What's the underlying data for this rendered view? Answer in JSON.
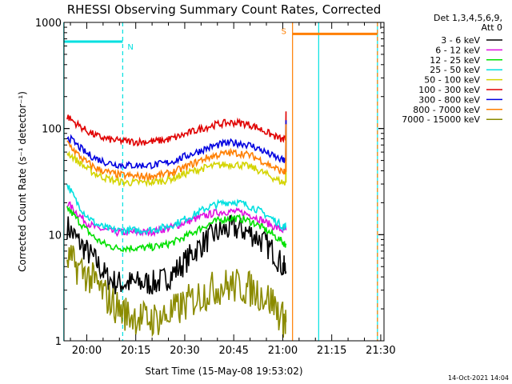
{
  "chart_data": {
    "type": "line",
    "title": "RHESSI Observing Summary Count Rates, Corrected",
    "xlabel": "Start Time (15-May-08 19:53:02)",
    "ylabel": "Corrected Count Rate (s⁻¹ detector⁻¹)",
    "yscale": "log",
    "ylim": [
      1,
      1000
    ],
    "xlim": [
      "19:53:02",
      "21:31:00"
    ],
    "x_ticks": [
      "20:00",
      "20:15",
      "20:30",
      "20:45",
      "21:00",
      "21:15",
      "21:30"
    ],
    "y_ticks": [
      "1",
      "10",
      "100",
      "1000"
    ],
    "detector_label": "Det 1,3,4,5,6,9,",
    "attenuator_label": "Att 0",
    "timestamp": "14-Oct-2021 14:04",
    "x": [
      "19:54",
      "19:57",
      "20:00",
      "20:03",
      "20:06",
      "20:09",
      "20:12",
      "20:15",
      "20:18",
      "20:21",
      "20:24",
      "20:27",
      "20:30",
      "20:33",
      "20:36",
      "20:39",
      "20:42",
      "20:45",
      "20:48",
      "20:51",
      "20:54",
      "20:57",
      "21:00",
      "21:01"
    ],
    "series": [
      {
        "name": "3 - 6 keV",
        "color": "#000000",
        "values": [
          12,
          9,
          7,
          5.5,
          4,
          3.5,
          3.5,
          3.5,
          3.5,
          3.5,
          3.8,
          4.5,
          5.5,
          7,
          8.5,
          10,
          11,
          11.5,
          11,
          10,
          8.5,
          7,
          5,
          4.5
        ]
      },
      {
        "name": "6 - 12 keV",
        "color": "#e010e0",
        "values": [
          20,
          16,
          13,
          11.5,
          11,
          10.5,
          10.5,
          10.5,
          10.5,
          10.8,
          11.3,
          12,
          13,
          14,
          15,
          16,
          16.5,
          16.5,
          16,
          15,
          13.5,
          12,
          11,
          11
        ]
      },
      {
        "name": "12 - 25 keV",
        "color": "#00e000",
        "values": [
          18,
          14,
          11,
          9,
          8,
          7.5,
          7.5,
          7.5,
          7.5,
          7.7,
          8,
          8.6,
          9.5,
          10.7,
          12,
          13.2,
          14,
          14.3,
          14,
          13,
          11.5,
          10,
          8.5,
          8
        ]
      },
      {
        "name": "25 - 50 keV",
        "color": "#00e0e0",
        "values": [
          30,
          20,
          15,
          12.5,
          11.5,
          11,
          11,
          11,
          11,
          11.2,
          11.8,
          12.6,
          14,
          15.5,
          17.5,
          19,
          20,
          20.5,
          19.5,
          18,
          16,
          14,
          12,
          12
        ]
      },
      {
        "name": "50 - 100 keV",
        "color": "#d4d400",
        "values": [
          60,
          50,
          42,
          37,
          34,
          32,
          31,
          31,
          31,
          31.5,
          32.5,
          34.5,
          37.5,
          40,
          42.5,
          44.5,
          45.5,
          46,
          45,
          42.5,
          38.5,
          34.5,
          31,
          31
        ]
      },
      {
        "name": "100 - 300 keV",
        "color": "#e00000",
        "values": [
          130,
          110,
          95,
          85,
          80,
          77,
          76,
          75,
          75,
          76,
          78,
          82,
          88,
          95,
          102,
          108,
          112,
          114,
          112,
          106,
          96,
          86,
          78,
          80
        ]
      },
      {
        "name": "300 - 800 keV",
        "color": "#0000e0",
        "values": [
          85,
          70,
          58,
          52,
          48,
          46,
          45,
          45,
          45,
          45.5,
          47,
          50,
          54.5,
          59,
          64,
          68.5,
          72,
          73.5,
          72,
          68,
          61.5,
          55,
          50,
          50
        ]
      },
      {
        "name": "800 - 7000 keV",
        "color": "#ff7f00",
        "values": [
          75,
          58,
          48,
          42,
          39,
          37,
          36,
          35.5,
          35.5,
          36,
          37,
          39.5,
          43,
          47.5,
          52,
          55.5,
          58,
          59,
          58,
          54.5,
          49,
          43.5,
          39,
          39
        ]
      },
      {
        "name": "7000 - 15000 keV",
        "color": "#8b8b00",
        "values": [
          6,
          5,
          4.2,
          3.4,
          2.6,
          2.1,
          1.8,
          1.7,
          1.6,
          1.6,
          1.7,
          1.9,
          2.2,
          2.5,
          2.8,
          3.1,
          3.3,
          3.3,
          3.2,
          3,
          2.7,
          2.3,
          1.6,
          1.5
        ]
      }
    ],
    "flare_spike": {
      "time": "21:01",
      "values": {
        "100 - 300 keV": 145,
        "300 - 800 keV": 120,
        "800 - 7000 keV": 110,
        "50 - 100 keV": 80
      }
    },
    "flags": [
      {
        "label": "N",
        "color": "#00e0e0",
        "bar_start": "19:53",
        "bar_end": "20:11",
        "level": 660,
        "vline": "20:11"
      },
      {
        "label": "S",
        "color": "#ff7f00",
        "bar_start": "21:03",
        "bar_end": "21:29",
        "level": 780,
        "vline": "21:03"
      }
    ],
    "night_intervals": [
      {
        "start": "19:53",
        "end": "19:53",
        "color": "#00e0e0"
      },
      {
        "start": "21:11",
        "end": "21:29",
        "color": "#00e0e0"
      }
    ],
    "ends": [
      {
        "time": "21:29",
        "color": "#ff7f00",
        "dashed": true
      }
    ]
  }
}
